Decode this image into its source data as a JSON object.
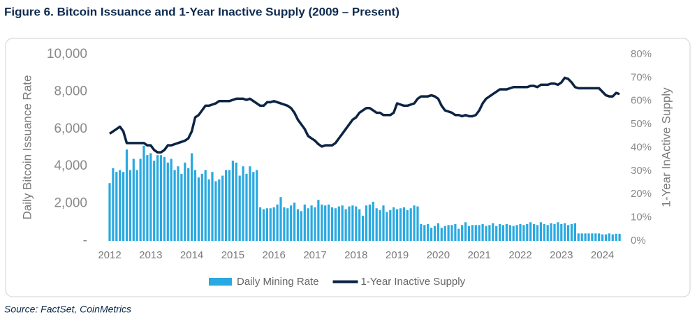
{
  "chart_data": {
    "type": "combo",
    "title": "Figure 6. Bitcoin Issuance and 1-Year Inactive Supply (2009 – Present)",
    "source": "Source: FactSet, CoinMetrics",
    "y_label": "Daily Bitcoin Issuance Rate",
    "y2_label": "1-Year InActive Supply",
    "categories": [
      "2012",
      null,
      null,
      null,
      null,
      null,
      null,
      null,
      null,
      null,
      null,
      null,
      "2013",
      null,
      null,
      null,
      null,
      null,
      null,
      null,
      null,
      null,
      null,
      null,
      "2014",
      null,
      null,
      null,
      null,
      null,
      null,
      null,
      null,
      null,
      null,
      null,
      "2015",
      null,
      null,
      null,
      null,
      null,
      null,
      null,
      null,
      null,
      null,
      null,
      "2016",
      null,
      null,
      null,
      null,
      null,
      null,
      null,
      null,
      null,
      null,
      null,
      "2017",
      null,
      null,
      null,
      null,
      null,
      null,
      null,
      null,
      null,
      null,
      null,
      "2018",
      null,
      null,
      null,
      null,
      null,
      null,
      null,
      null,
      null,
      null,
      null,
      "2019",
      null,
      null,
      null,
      null,
      null,
      null,
      null,
      null,
      null,
      null,
      null,
      "2020",
      null,
      null,
      null,
      null,
      null,
      null,
      null,
      null,
      null,
      null,
      null,
      "2021",
      null,
      null,
      null,
      null,
      null,
      null,
      null,
      null,
      null,
      null,
      null,
      "2022",
      null,
      null,
      null,
      null,
      null,
      null,
      null,
      null,
      null,
      null,
      null,
      "2023",
      null,
      null,
      null,
      null,
      null,
      null,
      null,
      null,
      null,
      null,
      null,
      "2024",
      null,
      null,
      null,
      null,
      null
    ],
    "ylim": [
      0,
      10000
    ],
    "yticks": [
      {
        "value": 0,
        "label": "-"
      },
      {
        "value": 2000,
        "label": "2,000"
      },
      {
        "value": 4000,
        "label": "4,000"
      },
      {
        "value": 6000,
        "label": "6,000"
      },
      {
        "value": 8000,
        "label": "8,000"
      },
      {
        "value": 10000,
        "label": "10,000"
      }
    ],
    "y2lim": [
      0,
      80
    ],
    "y2ticks": [
      {
        "value": 0,
        "label": "0%"
      },
      {
        "value": 10,
        "label": "10%"
      },
      {
        "value": 20,
        "label": "20%"
      },
      {
        "value": 30,
        "label": "30%"
      },
      {
        "value": 40,
        "label": "40%"
      },
      {
        "value": 50,
        "label": "50%"
      },
      {
        "value": 60,
        "label": "60%"
      },
      {
        "value": 70,
        "label": "70%"
      },
      {
        "value": 80,
        "label": "80%"
      }
    ],
    "legend": "bottom",
    "series": [
      {
        "name": "Daily Mining Rate",
        "type": "bar",
        "color": "#29a9e1",
        "values": [
          3100,
          3900,
          3700,
          3800,
          3700,
          4900,
          3800,
          4400,
          3800,
          4400,
          5100,
          4600,
          4700,
          4300,
          4600,
          4600,
          4500,
          4200,
          4400,
          3800,
          4000,
          3600,
          4200,
          3900,
          4700,
          3800,
          3400,
          3600,
          3800,
          3300,
          3700,
          3200,
          3300,
          3500,
          3800,
          3800,
          4300,
          4200,
          3500,
          4000,
          3600,
          4000,
          3700,
          3800,
          1800,
          1700,
          1750,
          1750,
          1800,
          1950,
          2350,
          1800,
          1750,
          1900,
          2050,
          1700,
          1600,
          1950,
          1750,
          1900,
          1800,
          2200,
          1950,
          1900,
          1950,
          1800,
          1750,
          1850,
          1900,
          1700,
          1850,
          1900,
          1850,
          1700,
          1350,
          1900,
          1950,
          2100,
          1750,
          1650,
          1900,
          1550,
          1650,
          1800,
          1700,
          1750,
          1800,
          1650,
          1750,
          1900,
          1850,
          900,
          850,
          900,
          700,
          800,
          950,
          700,
          800,
          850,
          850,
          900,
          650,
          850,
          1000,
          800,
          850,
          850,
          850,
          900,
          800,
          850,
          950,
          800,
          900,
          850,
          900,
          850,
          800,
          850,
          900,
          850,
          900,
          1000,
          900,
          850,
          1000,
          900,
          850,
          950,
          900,
          1000,
          900,
          950,
          850,
          900,
          950,
          400,
          400,
          400,
          400,
          400,
          400,
          400,
          350,
          350,
          400,
          350,
          380,
          380
        ]
      },
      {
        "name": "1-Year Inactive Supply",
        "type": "line",
        "axis": "y2",
        "color": "#0c2444",
        "values": [
          46,
          47,
          48,
          49,
          47,
          42,
          42,
          42,
          42,
          42,
          42,
          41,
          41,
          39,
          38,
          38,
          39,
          41,
          41,
          41.5,
          42,
          42.5,
          43,
          44,
          47,
          53,
          54,
          56,
          58,
          58,
          58.5,
          59,
          60,
          60,
          60,
          60,
          60.5,
          61,
          61,
          61,
          60.5,
          61,
          60,
          59,
          58,
          58,
          59.5,
          59.5,
          60,
          59.5,
          59,
          58.5,
          58,
          57,
          55,
          52,
          50,
          48,
          45,
          44,
          43,
          41.5,
          40.5,
          41,
          41,
          41,
          42,
          44,
          46,
          48,
          50,
          52,
          53,
          55,
          56,
          57,
          57,
          56,
          55,
          55,
          54,
          54,
          54,
          55,
          59,
          58.5,
          58,
          58,
          58.5,
          59,
          61,
          62,
          62,
          62,
          62.5,
          62,
          61,
          58,
          56,
          55.5,
          55,
          54,
          54,
          53.5,
          54,
          53.5,
          53.5,
          54,
          56,
          59,
          61,
          62,
          63,
          64,
          65,
          65,
          65,
          65.5,
          66,
          66,
          66,
          66,
          66,
          66.5,
          66.5,
          66,
          67,
          67,
          67,
          67.5,
          67.5,
          67,
          68,
          70,
          69.5,
          68,
          66,
          65.5,
          65.5,
          65.5,
          65.5,
          65.5,
          65.5,
          65.5,
          64,
          62.5,
          62,
          62,
          63.5,
          63
        ]
      }
    ]
  }
}
